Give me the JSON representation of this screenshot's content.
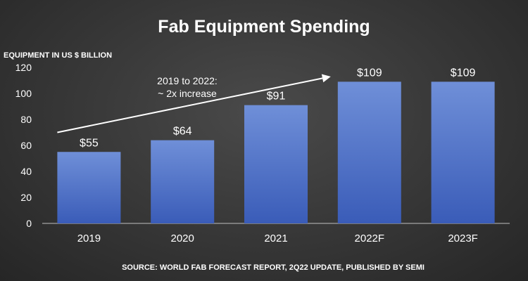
{
  "chart_data": {
    "type": "bar",
    "title": "Fab Equipment Spending",
    "ylabel": "EQUIPMENT IN US $ BILLION",
    "xlabel": "",
    "categories": [
      "2019",
      "2020",
      "2021",
      "2022F",
      "2023F"
    ],
    "values": [
      55,
      64,
      91,
      109,
      109
    ],
    "data_labels": [
      "$55",
      "$64",
      "$91",
      "$109",
      "$109"
    ],
    "ylim": [
      0,
      120
    ],
    "yticks": [
      0,
      20,
      40,
      60,
      80,
      100,
      120
    ],
    "grid": false,
    "legend": "none",
    "annotation": {
      "line1": "2019 to 2022:",
      "line2": "~ 2x increase",
      "arrow_from": {
        "x": "2019",
        "y": 70
      },
      "arrow_to": {
        "x": "2022F",
        "y": 113
      }
    },
    "source": "SOURCE: WORLD FAB FORECAST REPORT, 2Q22 UPDATE, PUBLISHED BY SEMI"
  },
  "colors": {
    "bar_top": "#6f8fd8",
    "bar_bottom": "#3a5cb8",
    "text": "#ffffff",
    "axis": "#bfbfbf"
  }
}
